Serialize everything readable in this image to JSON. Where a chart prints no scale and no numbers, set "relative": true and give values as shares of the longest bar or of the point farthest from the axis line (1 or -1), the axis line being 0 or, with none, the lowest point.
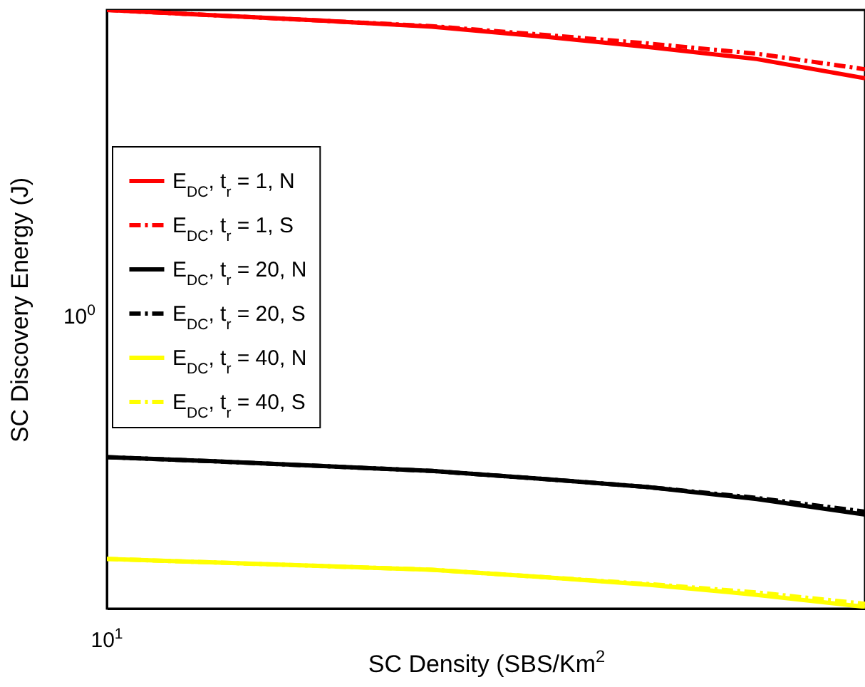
{
  "chart_data": {
    "type": "line",
    "relative": true,
    "xlabel": "SC Density (SBS/Km$^{2}$",
    "ylabel": "SC Discovery Energy (J)",
    "categories": [
      null,
      null,
      null,
      null,
      null,
      null,
      null,
      null
    ],
    "series": [
      {
        "name": "E$_{DC}$, t$_{r}$ = 1, N",
        "color": "#ff0000",
        "line_style": "solid",
        "values": [
          1,
          0.991,
          0.982,
          0.972,
          0.956,
          0.938,
          0.918,
          0.886
        ]
      },
      {
        "name": "E$_{DC}$, t$_{r}$ = 1, S",
        "color": "#ff0000",
        "line_style": "dashed",
        "values": [
          1,
          0.991,
          0.982,
          0.973,
          0.959,
          0.944,
          0.927,
          0.901
        ]
      },
      {
        "name": "E$_{DC}$, t$_{r}$ = 20, N",
        "color": "#000000",
        "line_style": "solid",
        "values": [
          0.253,
          0.246,
          0.238,
          0.23,
          0.217,
          0.203,
          0.183,
          0.157
        ]
      },
      {
        "name": "E$_{DC}$, t$_{r}$ = 20, S",
        "color": "#000000",
        "line_style": "dashed",
        "values": [
          0.253,
          0.246,
          0.238,
          0.23,
          0.217,
          0.203,
          0.185,
          0.162
        ]
      },
      {
        "name": "E$_{DC}$, t$_{r}$ = 40, N",
        "color": "#ffff00",
        "line_style": "solid",
        "values": [
          0.083,
          0.077,
          0.071,
          0.065,
          0.053,
          0.04,
          0.023,
          0.003
        ]
      },
      {
        "name": "E$_{DC}$, t$_{r}$ = 40, S",
        "color": "#ffff00",
        "line_style": "dashed",
        "values": [
          0.083,
          0.077,
          0.071,
          0.065,
          0.053,
          0.041,
          0.027,
          0.008
        ]
      }
    ],
    "annotations": [
      "10$^{0}$",
      "10$^{1}$"
    ],
    "legend": "left"
  }
}
